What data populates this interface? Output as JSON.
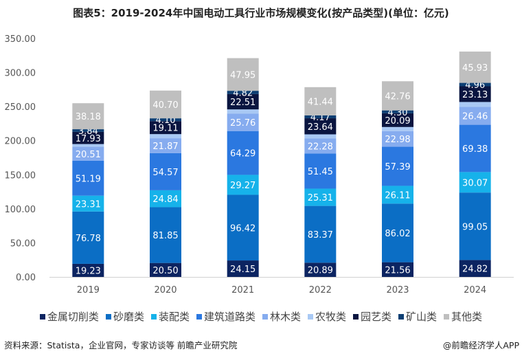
{
  "title": "图表5：2019-2024年中国电动工具行业市场规模变化(按产品类型)(单位：亿元)",
  "source": "资料来源：Statista，企业官网，专家访谈等 前瞻产业研究院",
  "brand": "@前瞻经济学人APP",
  "chart_data": {
    "type": "bar",
    "stacked": true,
    "title": "图表5：2019-2024年中国电动工具行业市场规模变化(按产品类型)(单位：亿元)",
    "categories": [
      "2019",
      "2020",
      "2021",
      "2022",
      "2023",
      "2024"
    ],
    "ylim": [
      0,
      350
    ],
    "yticks": [
      "0.00",
      "50.00",
      "100.00",
      "150.00",
      "200.00",
      "250.00",
      "300.00",
      "350.00"
    ],
    "legend_position": "bottom",
    "grid": false,
    "series": [
      {
        "name": "金属切削类",
        "color": "#0c2461",
        "label_color": "#ffffff",
        "values": [
          19.23,
          20.5,
          24.15,
          20.89,
          21.56,
          24.82
        ],
        "labels": [
          "19.23",
          "20.50",
          "24.15",
          "20.89",
          "21.56",
          "24.82"
        ]
      },
      {
        "name": "砂磨类",
        "color": "#0b6ec5",
        "label_color": "#ffffff",
        "values": [
          76.78,
          81.85,
          96.42,
          83.37,
          86.02,
          99.05
        ],
        "labels": [
          "76.78",
          "81.85",
          "96.42",
          "83.37",
          "86.02",
          "99.05"
        ]
      },
      {
        "name": "装配类",
        "color": "#16b2ea",
        "label_color": "#ffffff",
        "values": [
          23.31,
          24.84,
          29.27,
          25.31,
          26.11,
          30.07
        ],
        "labels": [
          "23.31",
          "24.84",
          "29.27",
          "25.31",
          "26.11",
          "30.07"
        ]
      },
      {
        "name": "建筑道路类",
        "color": "#2b78e0",
        "label_color": "#ffffff",
        "values": [
          51.19,
          54.57,
          64.29,
          51.45,
          57.39,
          69.38
        ],
        "labels": [
          "51.19",
          "54.57",
          "64.29",
          "51.45",
          "57.39",
          "69.38"
        ]
      },
      {
        "name": "林木类",
        "color": "#86acef",
        "label_color": "#ffffff",
        "values": [
          20.51,
          21.87,
          25.76,
          22.28,
          22.98,
          26.46
        ],
        "labels": [
          "20.51",
          "21.87",
          "25.76",
          "22.28",
          "22.98",
          "26.46"
        ]
      },
      {
        "name": "农牧类",
        "color": "#a9c9f4",
        "label_color": "#ffffff",
        "values": [
          4,
          6,
          6,
          6,
          6,
          7
        ],
        "labels": [
          "",
          "",
          "",
          "",
          "",
          ""
        ]
      },
      {
        "name": "园艺类",
        "color": "#0a1540",
        "label_color": "#ffffff",
        "values": [
          17.93,
          19.11,
          22.51,
          23.64,
          20.09,
          23.13
        ],
        "labels": [
          "17.93",
          "19.11",
          "22.51",
          "23.64",
          "20.09",
          "23.13"
        ]
      },
      {
        "name": "矿山类",
        "color": "#0d3f73",
        "label_color": "#ffffff",
        "values": [
          3.84,
          4.1,
          4.82,
          4.17,
          4.3,
          4.96
        ],
        "labels": [
          "3.84",
          "4.10",
          "4.82",
          "4.17",
          "4.30",
          "4.96"
        ]
      },
      {
        "name": "其他类",
        "color": "#bfbfbf",
        "label_color": "#ffffff",
        "values": [
          38.18,
          40.7,
          47.95,
          41.44,
          42.76,
          45.93
        ],
        "labels": [
          "38.18",
          "40.70",
          "47.95",
          "41.44",
          "42.76",
          "45.93"
        ]
      }
    ]
  }
}
